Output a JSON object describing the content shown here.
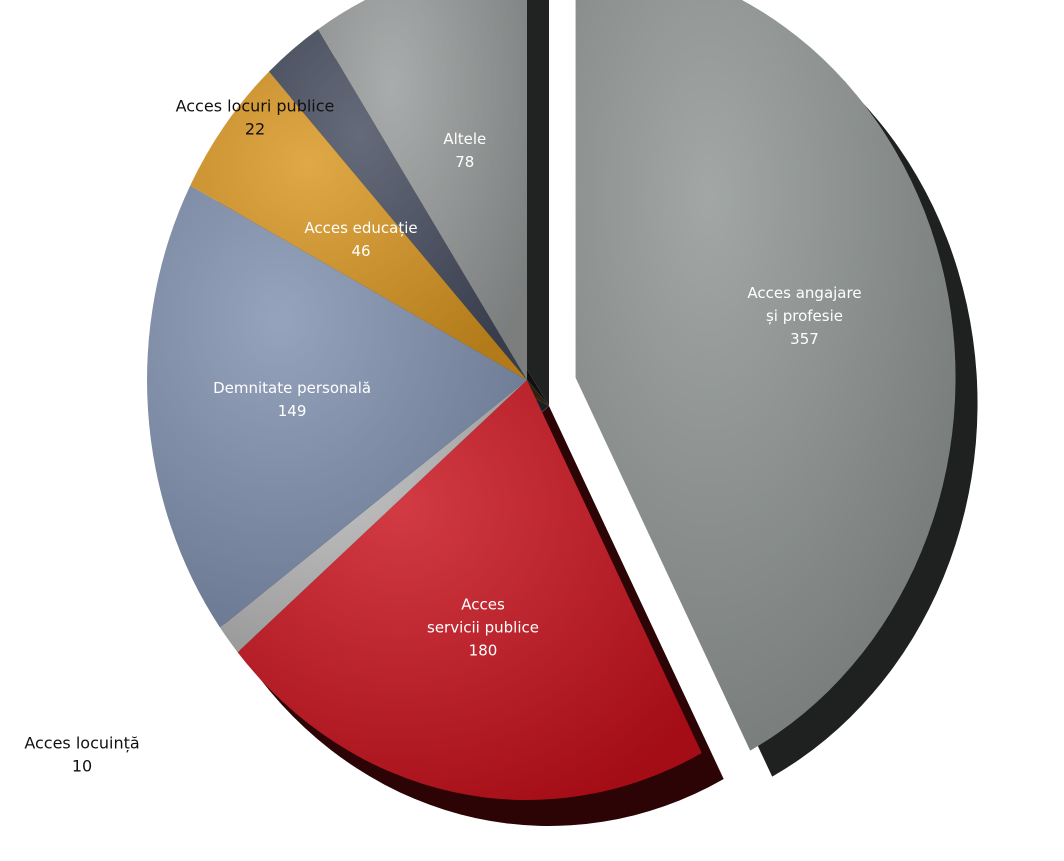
{
  "chart_data": {
    "type": "pie",
    "title": "",
    "unit": "",
    "exploded": "Acces angajare și profesie",
    "slices": [
      {
        "label": "Acces angajare și profesie",
        "lines": [
          "Acces angajare",
          "și profesie",
          "357"
        ],
        "value": 357,
        "color": "#8e9492",
        "label_color": "#ffffff",
        "label_inside": true
      },
      {
        "label": "Acces servicii publice",
        "lines": [
          "Acces",
          "servicii publice",
          "180"
        ],
        "value": 180,
        "color": "#c8101a",
        "label_color": "#ffffff",
        "label_inside": true
      },
      {
        "label": "Acces locuință",
        "lines": [
          "Acces locuință",
          "10"
        ],
        "value": 10,
        "color": "#b9b9b9",
        "label_color": "#111111",
        "label_inside": false
      },
      {
        "label": "Demnitate personală",
        "lines": [
          "Demnitate personală",
          "149"
        ],
        "value": 149,
        "color": "#7f8fae",
        "label_color": "#ffffff",
        "label_inside": true
      },
      {
        "label": "Acces educație",
        "lines": [
          "Acces educație",
          "46"
        ],
        "value": 46,
        "color": "#d9951e",
        "label_color": "#ffffff",
        "label_inside": true
      },
      {
        "label": "Acces locuri publice",
        "lines": [
          "Acces locuri publice",
          "22"
        ],
        "value": 22,
        "color": "#434a5c",
        "label_color": "#111111",
        "label_inside": false
      },
      {
        "label": "Altele",
        "lines": [
          "Altele",
          "78"
        ],
        "value": 78,
        "color": "#979a9a",
        "label_color": "#ffffff",
        "label_inside": true
      }
    ]
  }
}
